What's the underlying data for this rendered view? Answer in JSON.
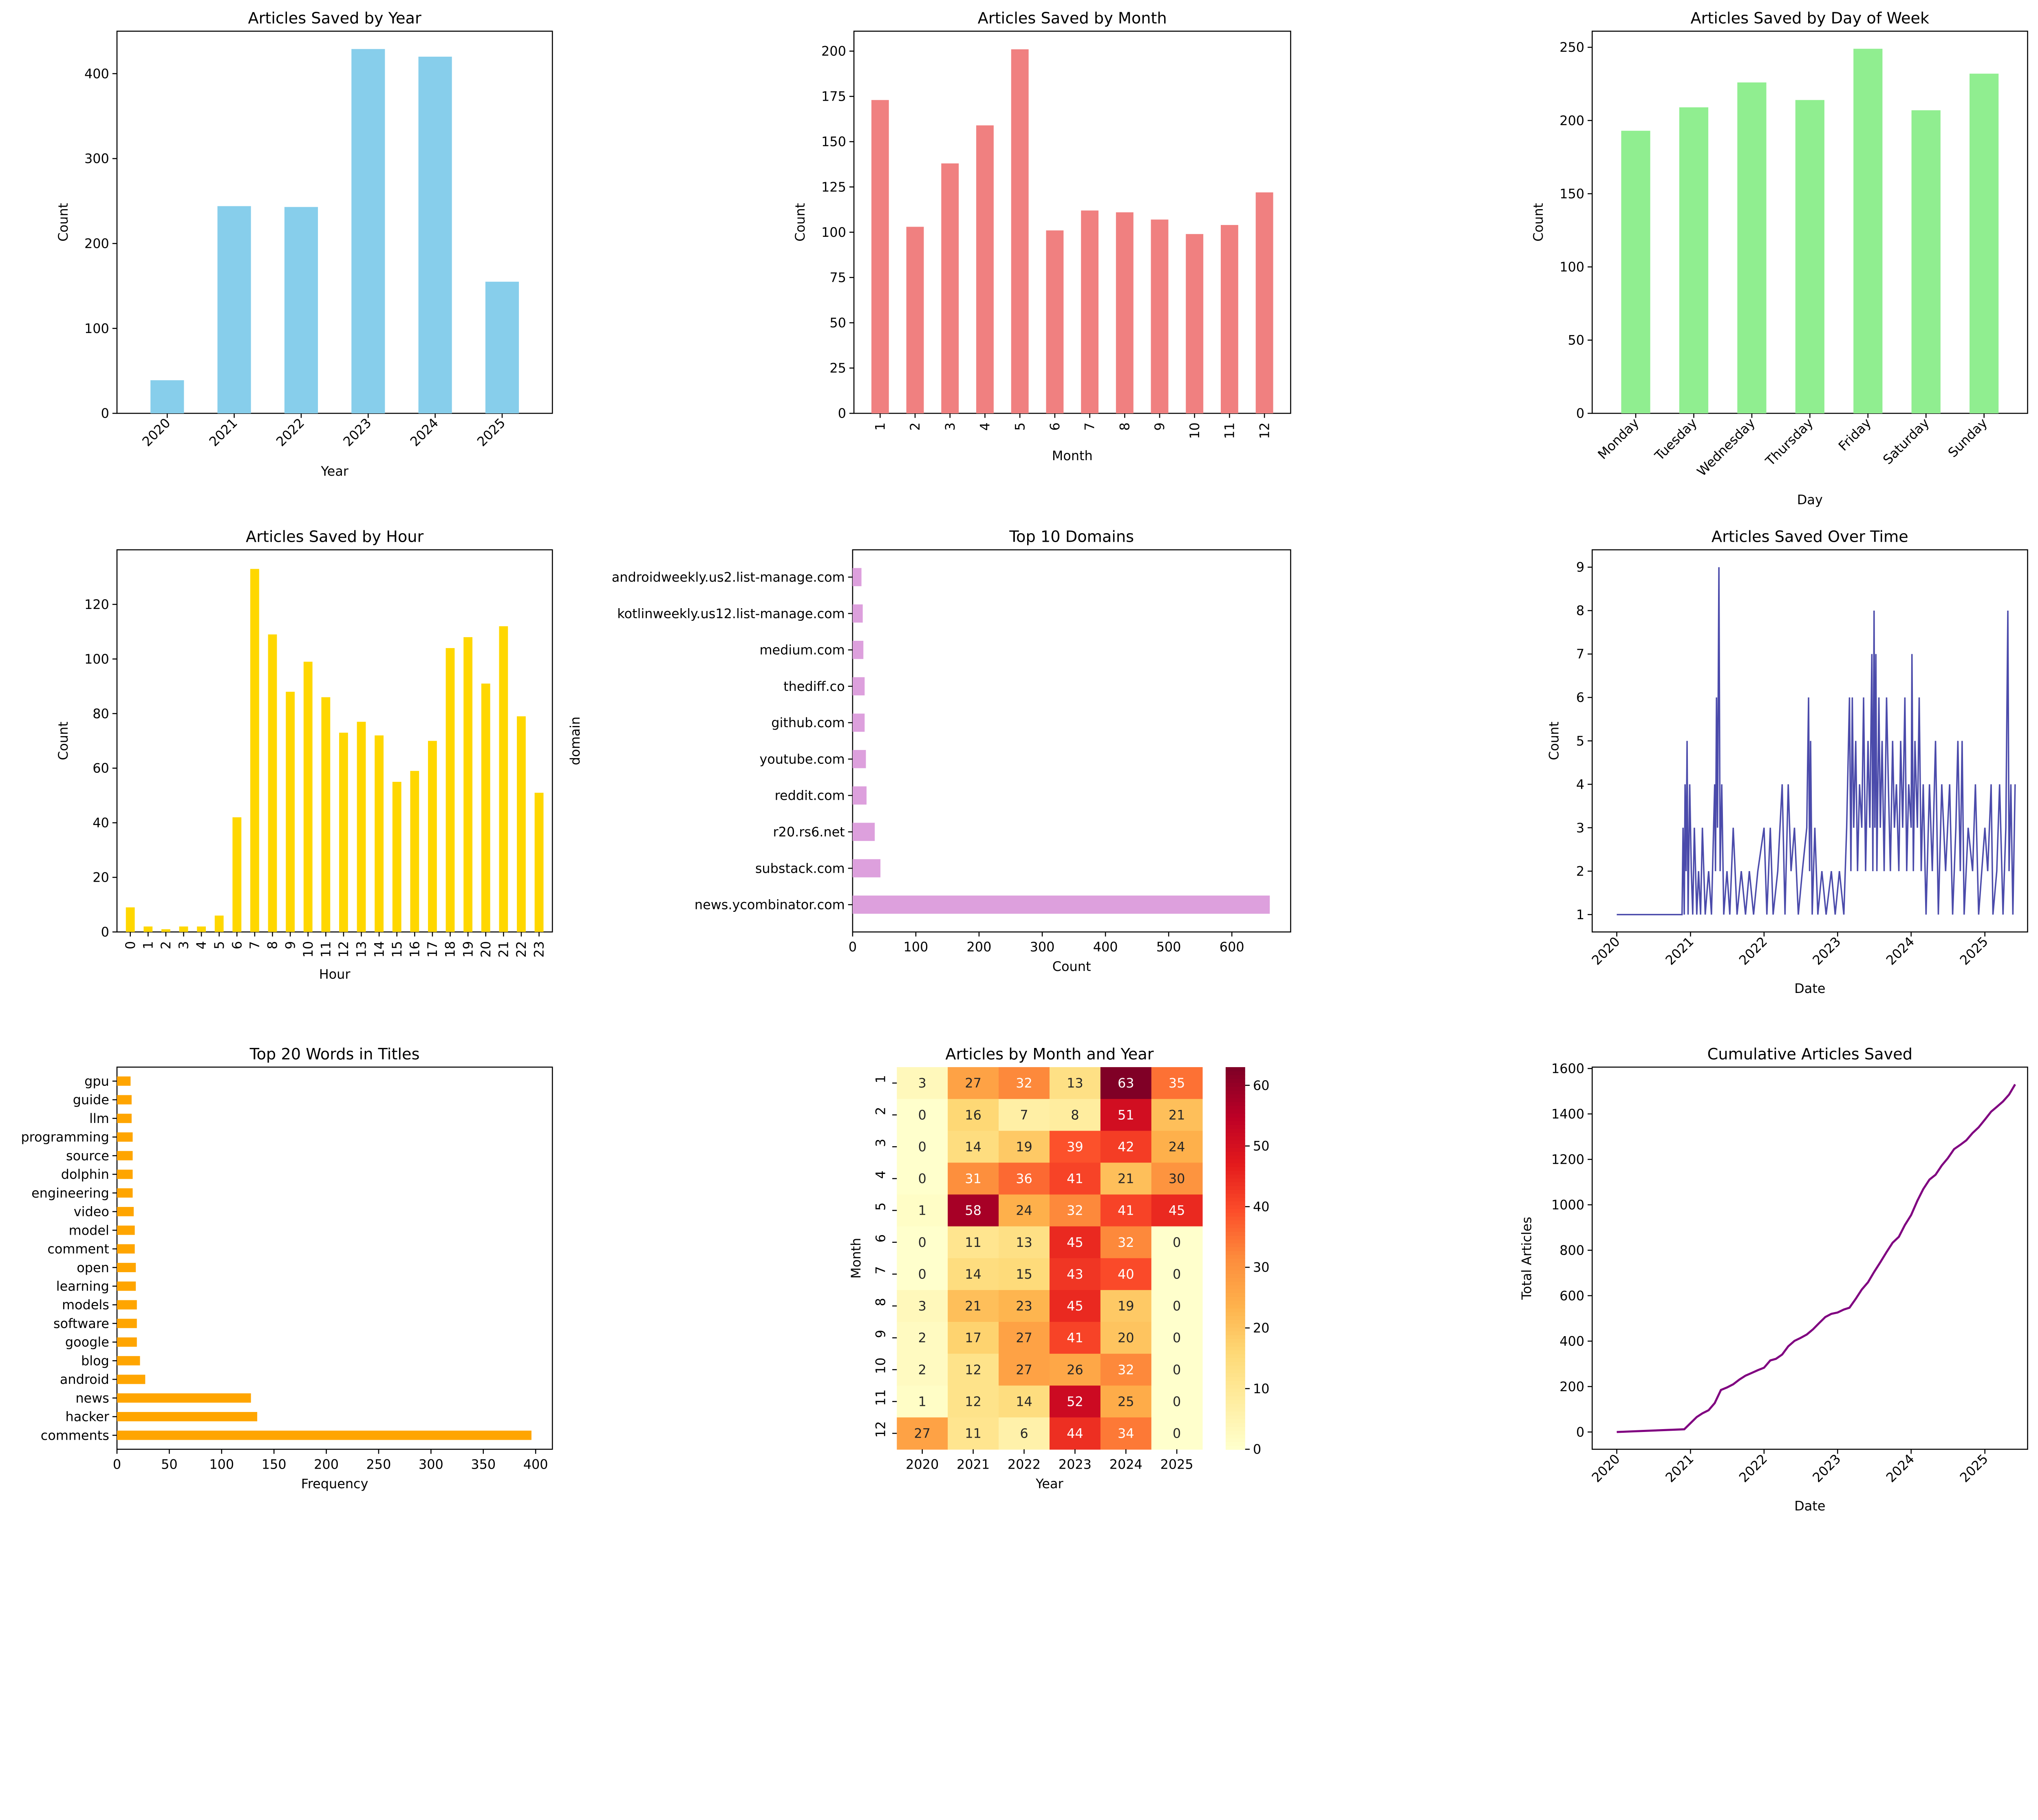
{
  "chart_data": [
    {
      "id": "year",
      "type": "bar",
      "title": "Articles Saved by Year",
      "xlabel": "Year",
      "ylabel": "Count",
      "categories": [
        "2020",
        "2021",
        "2022",
        "2023",
        "2024",
        "2025"
      ],
      "values": [
        39,
        244,
        243,
        429,
        420,
        155
      ],
      "yticks": [
        0,
        100,
        200,
        300,
        400
      ],
      "ylim": [
        0,
        450
      ],
      "color": "#87ceeb",
      "xtick_rotation": 45
    },
    {
      "id": "month",
      "type": "bar",
      "title": "Articles Saved by Month",
      "xlabel": "Month",
      "ylabel": "Count",
      "categories": [
        "1",
        "2",
        "3",
        "4",
        "5",
        "6",
        "7",
        "8",
        "9",
        "10",
        "11",
        "12"
      ],
      "values": [
        173,
        103,
        138,
        159,
        201,
        101,
        112,
        111,
        107,
        99,
        104,
        122
      ],
      "yticks": [
        0,
        25,
        50,
        75,
        100,
        125,
        150,
        175,
        200
      ],
      "ylim": [
        0,
        211
      ],
      "color": "#f08080",
      "xtick_rotation": 90
    },
    {
      "id": "dow",
      "type": "bar",
      "title": "Articles Saved by Day of Week",
      "xlabel": "Day",
      "ylabel": "Count",
      "categories": [
        "Monday",
        "Tuesday",
        "Wednesday",
        "Thursday",
        "Friday",
        "Saturday",
        "Sunday"
      ],
      "values": [
        193,
        209,
        226,
        214,
        249,
        207,
        232
      ],
      "yticks": [
        0,
        50,
        100,
        150,
        200,
        250
      ],
      "ylim": [
        0,
        261
      ],
      "color": "#90ee90",
      "xtick_rotation": 45
    },
    {
      "id": "hour",
      "type": "bar",
      "title": "Articles Saved by Hour",
      "xlabel": "Hour",
      "ylabel": "Count",
      "categories": [
        "0",
        "1",
        "2",
        "3",
        "4",
        "5",
        "6",
        "7",
        "8",
        "9",
        "10",
        "11",
        "12",
        "13",
        "14",
        "15",
        "16",
        "17",
        "18",
        "19",
        "20",
        "21",
        "22",
        "23"
      ],
      "values": [
        9,
        2,
        1,
        2,
        2,
        6,
        42,
        133,
        109,
        88,
        99,
        86,
        73,
        77,
        72,
        55,
        59,
        70,
        104,
        108,
        91,
        112,
        79,
        51
      ],
      "yticks": [
        0,
        20,
        40,
        60,
        80,
        100,
        120
      ],
      "ylim": [
        0,
        140
      ],
      "color": "#ffd700",
      "xtick_rotation": 90
    },
    {
      "id": "domains",
      "type": "barh",
      "title": "Top 10 Domains",
      "xlabel": "Count",
      "ylabel": "domain",
      "categories": [
        "news.ycombinator.com",
        "substack.com",
        "r20.rs6.net",
        "reddit.com",
        "youtube.com",
        "github.com",
        "thediff.co",
        "medium.com",
        "kotlinweekly.us12.list-manage.com",
        "androidweekly.us2.list-manage.com"
      ],
      "values": [
        660,
        44,
        35,
        22,
        21,
        19,
        19,
        17,
        16,
        14
      ],
      "xticks": [
        0,
        100,
        200,
        300,
        400,
        500,
        600
      ],
      "xlim": [
        0,
        693
      ],
      "color": "#dda0dd"
    },
    {
      "id": "overtime",
      "type": "line",
      "title": "Articles Saved Over Time",
      "xlabel": "Date",
      "ylabel": "Count",
      "xticks": [
        "2020",
        "2021",
        "2022",
        "2023",
        "2024",
        "2025"
      ],
      "yticks": [
        1,
        2,
        3,
        4,
        5,
        6,
        7,
        8,
        9
      ],
      "ylim": [
        0.6,
        9.4
      ],
      "xlim": [
        "2019-09-01",
        "2025-08-01"
      ],
      "color": "#4b4bab",
      "points": [
        [
          "2020-01-01",
          1
        ],
        [
          "2020-11-20",
          1
        ],
        [
          "2020-11-25",
          3
        ],
        [
          "2020-12-01",
          1
        ],
        [
          "2020-12-05",
          4
        ],
        [
          "2020-12-10",
          2
        ],
        [
          "2020-12-15",
          5
        ],
        [
          "2020-12-20",
          1
        ],
        [
          "2020-12-28",
          4
        ],
        [
          "2021-01-05",
          2
        ],
        [
          "2021-01-12",
          1
        ],
        [
          "2021-01-20",
          3
        ],
        [
          "2021-02-01",
          1
        ],
        [
          "2021-02-10",
          2
        ],
        [
          "2021-02-20",
          1
        ],
        [
          "2021-03-01",
          3
        ],
        [
          "2021-03-15",
          1
        ],
        [
          "2021-04-01",
          2
        ],
        [
          "2021-04-15",
          1
        ],
        [
          "2021-05-01",
          4
        ],
        [
          "2021-05-05",
          2
        ],
        [
          "2021-05-10",
          6
        ],
        [
          "2021-05-15",
          3
        ],
        [
          "2021-05-22",
          9
        ],
        [
          "2021-05-28",
          2
        ],
        [
          "2021-06-05",
          4
        ],
        [
          "2021-06-15",
          1
        ],
        [
          "2021-07-01",
          2
        ],
        [
          "2021-07-15",
          1
        ],
        [
          "2021-08-01",
          3
        ],
        [
          "2021-08-20",
          1
        ],
        [
          "2021-09-10",
          2
        ],
        [
          "2021-10-01",
          1
        ],
        [
          "2021-10-20",
          2
        ],
        [
          "2021-11-10",
          1
        ],
        [
          "2021-12-01",
          2
        ],
        [
          "2022-01-01",
          3
        ],
        [
          "2022-01-15",
          1
        ],
        [
          "2022-02-01",
          3
        ],
        [
          "2022-02-15",
          1
        ],
        [
          "2022-03-10",
          2
        ],
        [
          "2022-04-01",
          4
        ],
        [
          "2022-04-15",
          1
        ],
        [
          "2022-05-01",
          4
        ],
        [
          "2022-05-15",
          2
        ],
        [
          "2022-06-01",
          3
        ],
        [
          "2022-06-20",
          1
        ],
        [
          "2022-07-10",
          2
        ],
        [
          "2022-08-01",
          3
        ],
        [
          "2022-08-10",
          6
        ],
        [
          "2022-08-15",
          2
        ],
        [
          "2022-08-20",
          5
        ],
        [
          "2022-08-28",
          1
        ],
        [
          "2022-09-10",
          3
        ],
        [
          "2022-09-25",
          1
        ],
        [
          "2022-10-15",
          2
        ],
        [
          "2022-11-05",
          1
        ],
        [
          "2022-12-01",
          2
        ],
        [
          "2022-12-20",
          1
        ],
        [
          "2023-01-10",
          2
        ],
        [
          "2023-02-01",
          1
        ],
        [
          "2023-02-15",
          3
        ],
        [
          "2023-03-01",
          6
        ],
        [
          "2023-03-08",
          2
        ],
        [
          "2023-03-15",
          6
        ],
        [
          "2023-03-22",
          3
        ],
        [
          "2023-04-01",
          5
        ],
        [
          "2023-04-10",
          2
        ],
        [
          "2023-04-20",
          4
        ],
        [
          "2023-05-01",
          3
        ],
        [
          "2023-05-10",
          6
        ],
        [
          "2023-05-20",
          2
        ],
        [
          "2023-06-01",
          5
        ],
        [
          "2023-06-10",
          3
        ],
        [
          "2023-06-20",
          7
        ],
        [
          "2023-06-25",
          2
        ],
        [
          "2023-07-01",
          8
        ],
        [
          "2023-07-05",
          3
        ],
        [
          "2023-07-10",
          7
        ],
        [
          "2023-07-15",
          2
        ],
        [
          "2023-07-25",
          6
        ],
        [
          "2023-08-01",
          3
        ],
        [
          "2023-08-10",
          5
        ],
        [
          "2023-08-20",
          2
        ],
        [
          "2023-09-01",
          6
        ],
        [
          "2023-09-10",
          4
        ],
        [
          "2023-09-20",
          2
        ],
        [
          "2023-10-01",
          5
        ],
        [
          "2023-10-10",
          3
        ],
        [
          "2023-10-20",
          4
        ],
        [
          "2023-11-01",
          2
        ],
        [
          "2023-11-10",
          5
        ],
        [
          "2023-11-20",
          3
        ],
        [
          "2023-12-01",
          6
        ],
        [
          "2023-12-10",
          2
        ],
        [
          "2023-12-20",
          4
        ],
        [
          "2024-01-01",
          3
        ],
        [
          "2024-01-05",
          7
        ],
        [
          "2024-01-12",
          2
        ],
        [
          "2024-01-20",
          5
        ],
        [
          "2024-02-01",
          3
        ],
        [
          "2024-02-10",
          6
        ],
        [
          "2024-02-20",
          2
        ],
        [
          "2024-03-01",
          4
        ],
        [
          "2024-03-15",
          1
        ],
        [
          "2024-04-01",
          4
        ],
        [
          "2024-04-15",
          2
        ],
        [
          "2024-05-01",
          5
        ],
        [
          "2024-05-15",
          1
        ],
        [
          "2024-06-01",
          4
        ],
        [
          "2024-06-20",
          2
        ],
        [
          "2024-07-10",
          4
        ],
        [
          "2024-07-25",
          1
        ],
        [
          "2024-08-10",
          3
        ],
        [
          "2024-08-20",
          5
        ],
        [
          "2024-09-01",
          2
        ],
        [
          "2024-09-10",
          5
        ],
        [
          "2024-09-20",
          1
        ],
        [
          "2024-10-10",
          3
        ],
        [
          "2024-11-01",
          2
        ],
        [
          "2024-11-15",
          4
        ],
        [
          "2024-12-01",
          1
        ],
        [
          "2025-01-01",
          3
        ],
        [
          "2025-01-15",
          2
        ],
        [
          "2025-02-01",
          4
        ],
        [
          "2025-02-10",
          1
        ],
        [
          "2025-03-01",
          2
        ],
        [
          "2025-03-15",
          4
        ],
        [
          "2025-04-01",
          1
        ],
        [
          "2025-04-15",
          3
        ],
        [
          "2025-04-25",
          8
        ],
        [
          "2025-05-01",
          2
        ],
        [
          "2025-05-10",
          4
        ],
        [
          "2025-05-20",
          1
        ],
        [
          "2025-05-31",
          4
        ]
      ]
    },
    {
      "id": "words",
      "type": "barh",
      "title": "Top 20 Words in Titles",
      "xlabel": "Frequency",
      "ylabel": "",
      "categories": [
        "comments",
        "hacker",
        "news",
        "android",
        "blog",
        "google",
        "software",
        "models",
        "learning",
        "open",
        "comment",
        "model",
        "video",
        "engineering",
        "dolphin",
        "source",
        "programming",
        "llm",
        "guide",
        "gpu"
      ],
      "values": [
        396,
        134,
        128,
        27,
        22,
        19,
        19,
        19,
        18,
        18,
        17,
        17,
        16,
        15,
        15,
        15,
        15,
        14,
        14,
        13
      ],
      "xticks": [
        0,
        50,
        100,
        150,
        200,
        250,
        300,
        350,
        400
      ],
      "xlim": [
        0,
        416
      ],
      "color": "#ffa500"
    },
    {
      "id": "heatmap",
      "type": "heatmap",
      "title": "Articles by Month and Year",
      "xlabel": "Year",
      "ylabel": "Month",
      "columns": [
        "2020",
        "2021",
        "2022",
        "2023",
        "2024",
        "2025"
      ],
      "rows": [
        "1",
        "2",
        "3",
        "4",
        "5",
        "6",
        "7",
        "8",
        "9",
        "10",
        "11",
        "12"
      ],
      "values": [
        [
          3,
          27,
          32,
          13,
          63,
          35
        ],
        [
          0,
          16,
          7,
          8,
          51,
          21
        ],
        [
          0,
          14,
          19,
          39,
          42,
          24
        ],
        [
          0,
          31,
          36,
          41,
          21,
          30
        ],
        [
          1,
          58,
          24,
          32,
          41,
          45
        ],
        [
          0,
          11,
          13,
          45,
          32,
          0
        ],
        [
          0,
          14,
          15,
          43,
          40,
          0
        ],
        [
          3,
          21,
          23,
          45,
          19,
          0
        ],
        [
          2,
          17,
          27,
          41,
          20,
          0
        ],
        [
          2,
          12,
          27,
          26,
          32,
          0
        ],
        [
          1,
          12,
          14,
          52,
          25,
          0
        ],
        [
          27,
          11,
          6,
          44,
          34,
          0
        ]
      ],
      "colormap": "YlOrRd",
      "vmin": 0,
      "vmax": 63,
      "colorbar_ticks": [
        0,
        10,
        20,
        30,
        40,
        50,
        60
      ]
    },
    {
      "id": "cumulative",
      "type": "line",
      "title": "Cumulative Articles Saved",
      "xlabel": "Date",
      "ylabel": "Total Articles",
      "xticks": [
        "2020",
        "2021",
        "2022",
        "2023",
        "2024",
        "2025"
      ],
      "yticks": [
        0,
        200,
        400,
        600,
        800,
        1000,
        1200,
        1400,
        1600
      ],
      "ylim": [
        -76,
        1606
      ],
      "xlim": [
        "2019-09-01",
        "2025-08-01"
      ],
      "color": "#800080",
      "points": [
        [
          "2020-01-01",
          0
        ],
        [
          "2020-12-01",
          12
        ],
        [
          "2021-01-01",
          39
        ],
        [
          "2021-02-01",
          66
        ],
        [
          "2021-03-01",
          82
        ],
        [
          "2021-04-01",
          96
        ],
        [
          "2021-05-01",
          127
        ],
        [
          "2021-06-01",
          185
        ],
        [
          "2021-07-01",
          196
        ],
        [
          "2021-08-01",
          210
        ],
        [
          "2021-09-01",
          231
        ],
        [
          "2021-10-01",
          248
        ],
        [
          "2021-11-01",
          260
        ],
        [
          "2021-12-01",
          272
        ],
        [
          "2022-01-01",
          283
        ],
        [
          "2022-02-01",
          315
        ],
        [
          "2022-03-01",
          322
        ],
        [
          "2022-04-01",
          341
        ],
        [
          "2022-05-01",
          377
        ],
        [
          "2022-06-01",
          401
        ],
        [
          "2022-07-01",
          414
        ],
        [
          "2022-08-01",
          429
        ],
        [
          "2022-09-01",
          452
        ],
        [
          "2022-10-01",
          479
        ],
        [
          "2022-11-01",
          506
        ],
        [
          "2022-12-01",
          520
        ],
        [
          "2023-01-01",
          526
        ],
        [
          "2023-02-01",
          539
        ],
        [
          "2023-03-01",
          547
        ],
        [
          "2023-04-01",
          586
        ],
        [
          "2023-05-01",
          627
        ],
        [
          "2023-06-01",
          659
        ],
        [
          "2023-07-01",
          704
        ],
        [
          "2023-08-01",
          747
        ],
        [
          "2023-09-01",
          792
        ],
        [
          "2023-10-01",
          833
        ],
        [
          "2023-11-01",
          859
        ],
        [
          "2023-12-01",
          911
        ],
        [
          "2024-01-01",
          955
        ],
        [
          "2024-02-01",
          1018
        ],
        [
          "2024-03-01",
          1069
        ],
        [
          "2024-04-01",
          1111
        ],
        [
          "2024-05-01",
          1132
        ],
        [
          "2024-06-01",
          1173
        ],
        [
          "2024-07-01",
          1205
        ],
        [
          "2024-08-01",
          1245
        ],
        [
          "2024-09-01",
          1264
        ],
        [
          "2024-10-01",
          1284
        ],
        [
          "2024-11-01",
          1316
        ],
        [
          "2024-12-01",
          1341
        ],
        [
          "2025-01-01",
          1375
        ],
        [
          "2025-02-01",
          1410
        ],
        [
          "2025-03-01",
          1431
        ],
        [
          "2025-04-01",
          1455
        ],
        [
          "2025-05-01",
          1485
        ],
        [
          "2025-05-31",
          1530
        ]
      ]
    }
  ]
}
